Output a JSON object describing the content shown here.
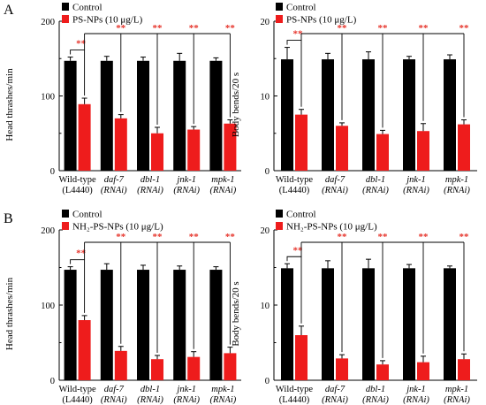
{
  "colors": {
    "control": "#000000",
    "treated": "#ee1c1c",
    "significance": "#e6332a"
  },
  "chart_data": [
    {
      "panel": "A",
      "type": "bar",
      "legend": [
        "Control",
        "PS-NPs (10 μg/L)"
      ],
      "legend_placement": "top-left",
      "ylabel": "Head thrashes/min",
      "ylim": [
        0,
        200
      ],
      "yticks": [
        "0",
        "100",
        "200"
      ],
      "categories": [
        [
          "Wild-type",
          "(L4440)"
        ],
        [
          "daf-7",
          "(RNAi)"
        ],
        [
          "dbl-1",
          "(RNAi)"
        ],
        [
          "jnk-1",
          "(RNAi)"
        ],
        [
          "mpk-1",
          "(RNAi)"
        ]
      ],
      "series": [
        {
          "name": "Control",
          "values": [
            147,
            147,
            147,
            147,
            147
          ],
          "errors": [
            5,
            6,
            5,
            10,
            4
          ]
        },
        {
          "name": "PS-NPs (10 μg/L)",
          "values": [
            89,
            70,
            50,
            55,
            63
          ],
          "errors": [
            8,
            5,
            8,
            4,
            5
          ]
        }
      ],
      "significance": [
        "**",
        "**",
        "**",
        "**",
        "**"
      ]
    },
    {
      "panel": "",
      "type": "bar",
      "legend": [
        "Control",
        "PS-NPs (10 μg/L)"
      ],
      "legend_placement": "top-left",
      "ylabel": "Body bends/20 s",
      "ylim": [
        0,
        20
      ],
      "yticks": [
        "0",
        "10",
        "20"
      ],
      "categories": [
        [
          "Wild-type",
          "(L4440)"
        ],
        [
          "daf-7",
          "(RNAi)"
        ],
        [
          "dbl-1",
          "(RNAi)"
        ],
        [
          "jnk-1",
          "(RNAi)"
        ],
        [
          "mpk-1",
          "(RNAi)"
        ]
      ],
      "series": [
        {
          "name": "Control",
          "values": [
            14.9,
            14.9,
            14.9,
            14.9,
            14.9
          ],
          "errors": [
            1.6,
            0.8,
            1.0,
            0.4,
            0.6
          ]
        },
        {
          "name": "PS-NPs (10 μg/L)",
          "values": [
            7.5,
            6.0,
            4.9,
            5.3,
            6.2
          ],
          "errors": [
            0.7,
            0.4,
            0.5,
            1.0,
            0.6
          ]
        }
      ],
      "significance": [
        "**",
        "**",
        "**",
        "**",
        "**"
      ]
    },
    {
      "panel": "B",
      "type": "bar",
      "legend": [
        "Control",
        "NH₂-PS-NPs (10 μg/L)"
      ],
      "legend_placement": "top-left",
      "ylabel": "Head thrashes/min",
      "ylim": [
        0,
        200
      ],
      "yticks": [
        "0",
        "100",
        "200"
      ],
      "categories": [
        [
          "Wild-type",
          "(L4440)"
        ],
        [
          "daf-7",
          "(RNAi)"
        ],
        [
          "dbl-1",
          "(RNAi)"
        ],
        [
          "jnk-1",
          "(RNAi)"
        ],
        [
          "mpk-1",
          "(RNAi)"
        ]
      ],
      "series": [
        {
          "name": "Control",
          "values": [
            147,
            147,
            147,
            147,
            147
          ],
          "errors": [
            4,
            8,
            6,
            5,
            4
          ]
        },
        {
          "name": "NH₂-PS-NPs (10 μg/L)",
          "values": [
            80,
            39,
            28,
            31,
            36
          ],
          "errors": [
            6,
            6,
            5,
            7,
            8
          ]
        }
      ],
      "significance": [
        "**",
        "**",
        "**",
        "**",
        "**"
      ]
    },
    {
      "panel": "",
      "type": "bar",
      "legend": [
        "Control",
        "NH₂-PS-NPs (10 μg/L)"
      ],
      "legend_placement": "top-left",
      "ylabel": "Body bends/20 s",
      "ylim": [
        0,
        20
      ],
      "yticks": [
        "0",
        "10",
        "20"
      ],
      "categories": [
        [
          "Wild-type",
          "(L4440)"
        ],
        [
          "daf-7",
          "(RNAi)"
        ],
        [
          "dbl-1",
          "(RNAi)"
        ],
        [
          "jnk-1",
          "(RNAi)"
        ],
        [
          "mpk-1",
          "(RNAi)"
        ]
      ],
      "series": [
        {
          "name": "Control",
          "values": [
            14.9,
            14.9,
            14.9,
            14.9,
            14.9
          ],
          "errors": [
            0.6,
            1.0,
            1.2,
            0.5,
            0.3
          ]
        },
        {
          "name": "NH₂-PS-NPs (10 μg/L)",
          "values": [
            6.0,
            2.9,
            2.1,
            2.4,
            2.8
          ],
          "errors": [
            1.2,
            0.5,
            0.5,
            0.8,
            0.7
          ]
        }
      ],
      "significance": [
        "**",
        "**",
        "**",
        "**",
        "**"
      ]
    }
  ]
}
